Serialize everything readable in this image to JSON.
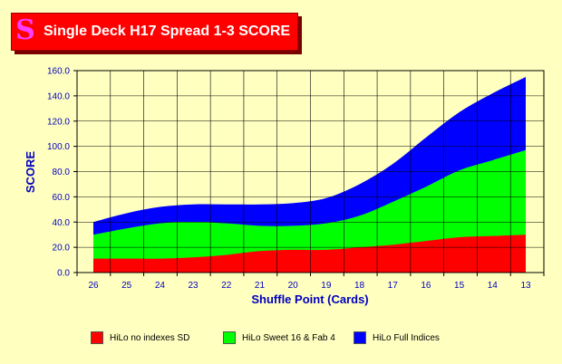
{
  "header": {
    "title": "Single Deck H17 Spread 1-3 SCORE",
    "logo_glyph": "S"
  },
  "chart_data": {
    "type": "area",
    "stacked": true,
    "title": "Single Deck H17 Spread 1-3 SCORE",
    "xlabel": "Shuffle Point (Cards)",
    "ylabel": "SCORE",
    "ylim": [
      0,
      160
    ],
    "y_ticks": [
      "0.0",
      "20.0",
      "40.0",
      "60.0",
      "80.0",
      "100.0",
      "120.0",
      "140.0",
      "160.0"
    ],
    "grid": true,
    "legend_position": "bottom",
    "background_color": "#FFFFC0",
    "plot_background_color": "#FFFFC0",
    "x": [
      "26",
      "25",
      "24",
      "23",
      "22",
      "21",
      "20",
      "19",
      "18",
      "17",
      "16",
      "15",
      "14",
      "13"
    ],
    "series": [
      {
        "name": "HiLo no indexes SD",
        "color": "#FF0000",
        "values": [
          11,
          11,
          11,
          12,
          14,
          17,
          18,
          18,
          20,
          22,
          25,
          28,
          29,
          30
        ]
      },
      {
        "name": "HiLo Sweet 16 & Fab 4",
        "color": "#00FF00",
        "values": [
          30,
          35,
          39,
          40,
          39,
          37,
          37,
          39,
          45,
          56,
          68,
          81,
          89,
          97
        ]
      },
      {
        "name": "HiLo Full Indices",
        "color": "#0000FF",
        "values": [
          40,
          47,
          52,
          54,
          54,
          54,
          55,
          59,
          70,
          86,
          107,
          127,
          142,
          155
        ]
      }
    ]
  }
}
